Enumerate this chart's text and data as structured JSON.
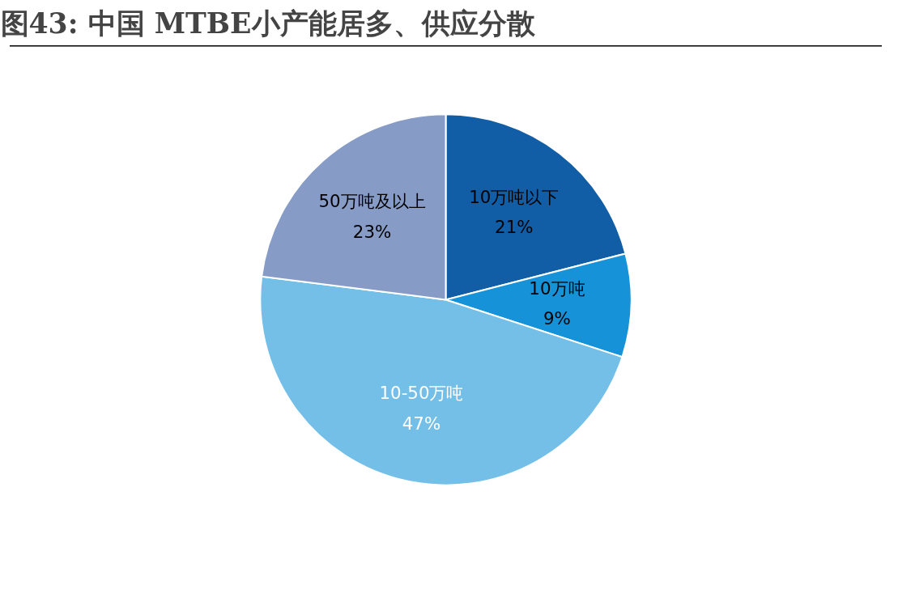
{
  "chart_data": {
    "type": "pie",
    "title": "图43: 中国 MTBE小产能居多、供应分散",
    "categories": [
      "10万吨以下",
      "10万吨",
      "10-50万吨",
      "50万吨及以上"
    ],
    "values": [
      21,
      9,
      47,
      23
    ],
    "colors": [
      "#125ea6",
      "#1592d8",
      "#73bfe8",
      "#869bc6"
    ],
    "value_labels": [
      "21%",
      "9%",
      "47%",
      "23%"
    ]
  }
}
